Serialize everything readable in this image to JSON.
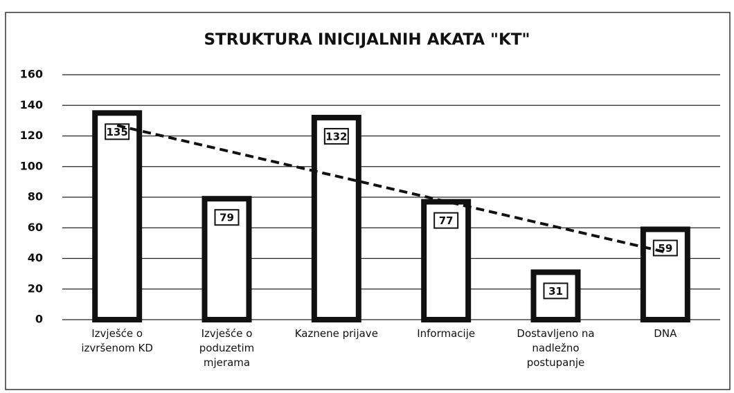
{
  "chart_data": {
    "type": "bar",
    "title": "STRUKTURA INICIJALNIH AKATA \"KT\"",
    "categories": [
      "Izvješće o izvršenom KD",
      "Izvješće o poduzetim mjerama",
      "Kaznene prijave",
      "Informacije",
      "Dostavljeno na nadležno postupanje",
      "DNA"
    ],
    "values": [
      135,
      79,
      132,
      77,
      31,
      59
    ],
    "color": "#111111",
    "ylim": [
      0,
      160
    ],
    "yticks": [
      0,
      20,
      40,
      60,
      80,
      100,
      120,
      140,
      160
    ],
    "grid": true,
    "trendline": true
  }
}
